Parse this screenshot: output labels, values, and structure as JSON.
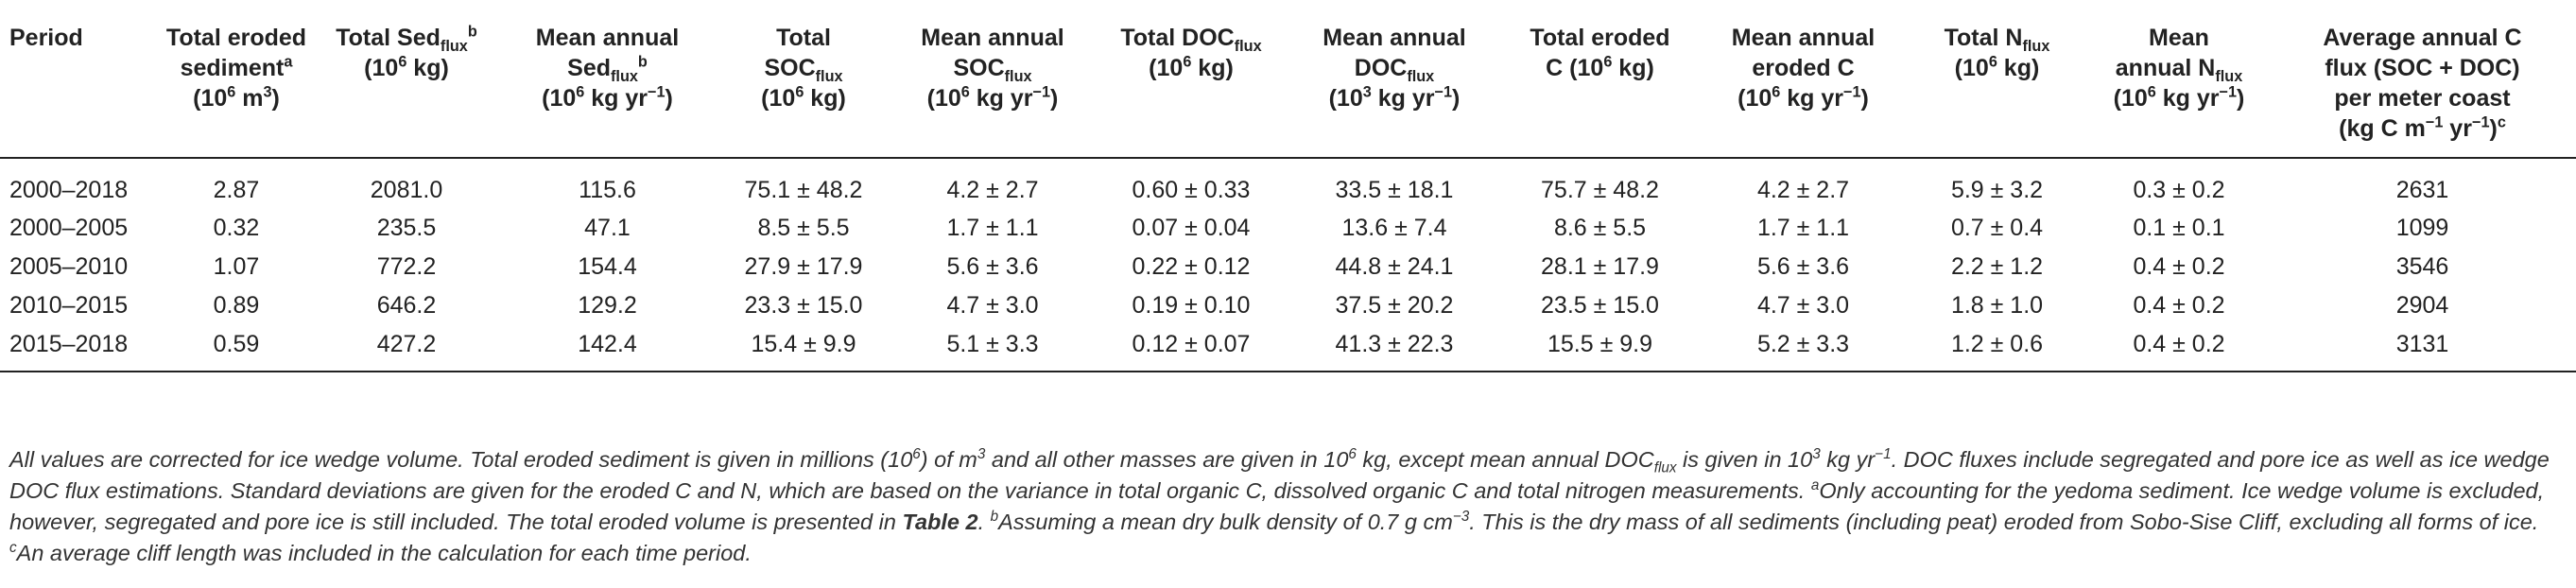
{
  "table": {
    "headers": [
      {
        "html": "Period"
      },
      {
        "html": "Total eroded<br>sediment<sup>a</sup><br>(10<sup>6</sup> m<sup>3</sup>)"
      },
      {
        "html": "Total Sed<sub>flux</sub><sup>b</sup><br>(10<sup>6</sup> kg)"
      },
      {
        "html": "Mean annual<br>Sed<sub>flux</sub><sup>b</sup><br>(10<sup>6</sup> kg yr<sup>−1</sup>)"
      },
      {
        "html": "Total<br>SOC<sub>flux</sub><br>(10<sup>6</sup> kg)"
      },
      {
        "html": "Mean annual<br>SOC<sub>flux</sub><br>(10<sup>6</sup> kg yr<sup>−1</sup>)"
      },
      {
        "html": "Total DOC<sub>flux</sub><br>(10<sup>6</sup> kg)"
      },
      {
        "html": "Mean annual<br>DOC<sub>flux</sub><br>(10<sup>3</sup> kg yr<sup>−1</sup>)"
      },
      {
        "html": "Total eroded<br>C (10<sup>6</sup> kg)"
      },
      {
        "html": "Mean annual<br>eroded C<br>(10<sup>6</sup> kg yr<sup>−1</sup>)"
      },
      {
        "html": "Total N<sub>flux</sub><br>(10<sup>6</sup> kg)"
      },
      {
        "html": "Mean<br>annual N<sub>flux</sub><br>(10<sup>6</sup> kg yr<sup>−1</sup>)"
      },
      {
        "html": "Average annual C<br>flux (SOC + DOC)<br>per meter coast<br>(kg C m<sup>−1</sup> yr<sup>−1</sup>)<sup>c</sup>"
      }
    ],
    "rows": [
      [
        "2000–2018",
        "2.87",
        "2081.0",
        "115.6",
        "75.1 ± 48.2",
        "4.2 ± 2.7",
        "0.60 ± 0.33",
        "33.5 ± 18.1",
        "75.7 ± 48.2",
        "4.2 ± 2.7",
        "5.9 ± 3.2",
        "0.3 ± 0.2",
        "2631"
      ],
      [
        "2000–2005",
        "0.32",
        "235.5",
        "47.1",
        "8.5 ± 5.5",
        "1.7 ± 1.1",
        "0.07 ± 0.04",
        "13.6 ± 7.4",
        "8.6 ± 5.5",
        "1.7 ± 1.1",
        "0.7 ± 0.4",
        "0.1 ± 0.1",
        "1099"
      ],
      [
        "2005–2010",
        "1.07",
        "772.2",
        "154.4",
        "27.9 ± 17.9",
        "5.6 ± 3.6",
        "0.22 ± 0.12",
        "44.8 ± 24.1",
        "28.1 ± 17.9",
        "5.6 ± 3.6",
        "2.2 ± 1.2",
        "0.4 ± 0.2",
        "3546"
      ],
      [
        "2010–2015",
        "0.89",
        "646.2",
        "129.2",
        "23.3 ± 15.0",
        "4.7 ± 3.0",
        "0.19 ± 0.10",
        "37.5 ± 20.2",
        "23.5 ± 15.0",
        "4.7 ± 3.0",
        "1.8 ± 1.0",
        "0.4 ± 0.2",
        "2904"
      ],
      [
        "2015–2018",
        "0.59",
        "427.2",
        "142.4",
        "15.4 ± 9.9",
        "5.1 ± 3.3",
        "0.12 ± 0.07",
        "41.3 ± 22.3",
        "15.5 ± 9.9",
        "5.2 ± 3.3",
        "1.2 ± 0.6",
        "0.4 ± 0.2",
        "3131"
      ]
    ]
  },
  "footnote_html": "All values are corrected for ice wedge volume. Total eroded sediment is given in millions (10<sup>6</sup>) of m<sup>3</sup> and all other masses are given in 10<sup>6</sup> kg, except mean annual DOC<sub>flux</sub> is given in 10<sup>3</sup> kg yr<sup>−1</sup>. DOC fluxes include segregated and pore ice as well as ice wedge DOC flux estimations. Standard deviations are given for the eroded C and N, which are based on the variance in total organic C, dissolved organic C and total nitrogen measurements. <sup>a</sup>Only accounting for the yedoma sediment. Ice wedge volume is excluded, however, segregated and pore ice is still included. The total eroded volume is presented in <b>Table 2</b>. <sup>b</sup>Assuming a mean dry bulk density of 0.7 g cm<sup>−3</sup>. This is the dry mass of all sediments (including peat) eroded from Sobo-Sise Cliff, excluding all forms of ice. <sup>c</sup>An average cliff length was included in the calculation for each time period."
}
